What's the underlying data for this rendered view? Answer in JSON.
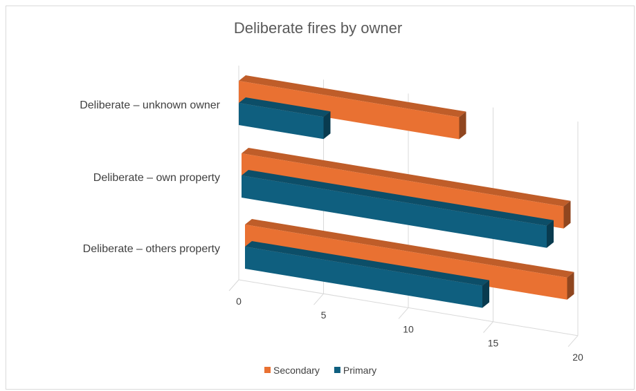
{
  "chart_data": {
    "type": "bar",
    "orientation": "horizontal",
    "style": "3d",
    "title": "Deliberate fires by owner",
    "categories": [
      "Deliberate – unknown owner",
      "Deliberate – own property",
      "Deliberate – others property"
    ],
    "series": [
      {
        "name": "Secondary",
        "color": "#E97132",
        "values": [
          13,
          19,
          19
        ]
      },
      {
        "name": "Primary",
        "color": "#0F5F7F",
        "values": [
          5,
          18,
          14
        ]
      }
    ],
    "xlim": [
      0,
      20
    ],
    "xticks": [
      "0",
      "5",
      "10",
      "15",
      "20"
    ],
    "grid": true,
    "legend": "bottom"
  }
}
